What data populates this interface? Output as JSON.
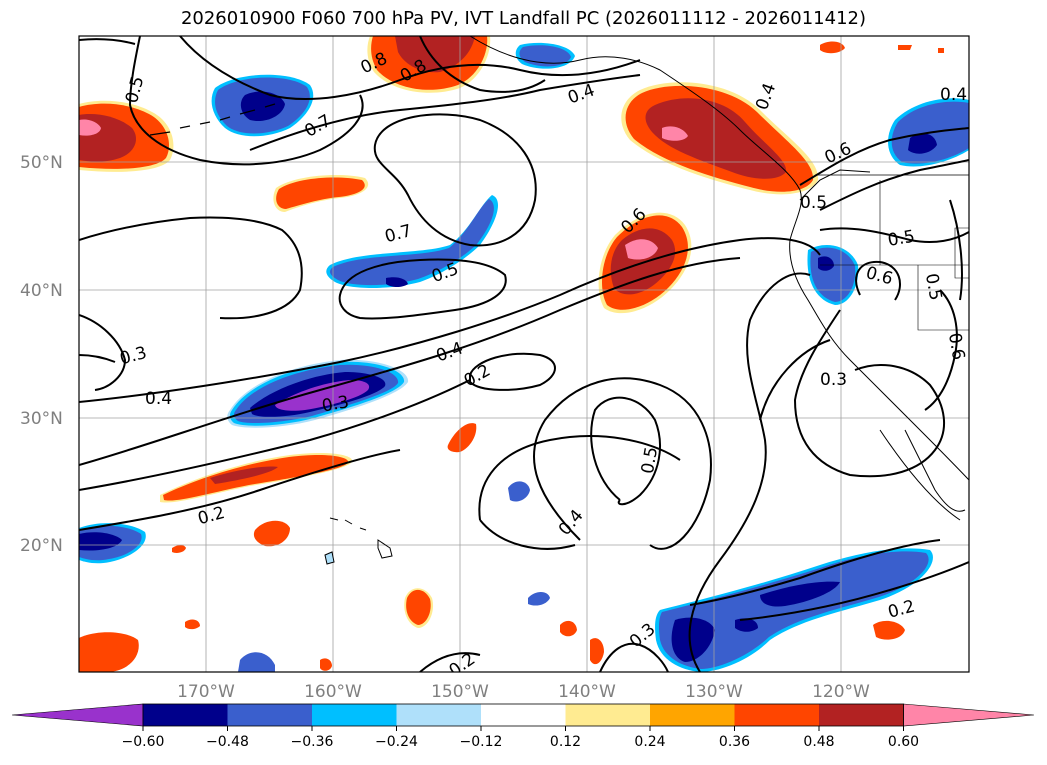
{
  "title": "2026010900 F060 700 hPa PV, IVT Landfall PC (2026011112 - 2026011412)",
  "lat_labels": [
    "50°N",
    "40°N",
    "30°N",
    "20°N"
  ],
  "lon_labels": [
    "170°W",
    "160°W",
    "150°W",
    "140°W",
    "130°W",
    "120°W"
  ],
  "colorbar": {
    "ticks": [
      "−0.60",
      "−0.48",
      "−0.36",
      "−0.24",
      "−0.12",
      "0.12",
      "0.24",
      "0.36",
      "0.48",
      "0.60"
    ],
    "colors": [
      "#9932cc",
      "#00008b",
      "#3a5fcd",
      "#00bfff",
      "#afe0fa",
      "#ffffff",
      "#ffeb91",
      "#ffa500",
      "#ff4500",
      "#b22222",
      "#ff85a8"
    ]
  },
  "contour_labels": [
    "0.5",
    "0.7",
    "0.8",
    "0.8",
    "0.4",
    "0.4",
    "0.6",
    "0.5",
    "0.5",
    "0.7",
    "0.5",
    "0.6",
    "0.6",
    "0.5",
    "0.6",
    "0.4",
    "0.2",
    "0.3",
    "0.4",
    "0.3",
    "0.3",
    "0.5",
    "0.4",
    "0.4",
    "0.2",
    "0.2",
    "0.3",
    "0.2"
  ]
}
